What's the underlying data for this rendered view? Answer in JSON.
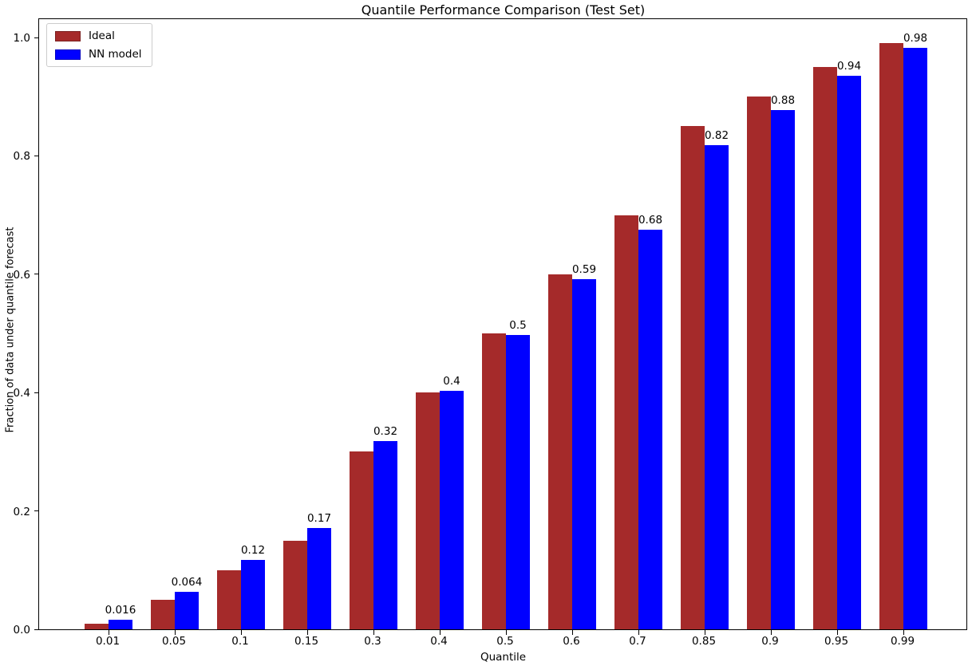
{
  "chart_data": {
    "type": "bar",
    "title": "Quantile Performance Comparison (Test Set)",
    "xlabel": "Quantile",
    "ylabel": "Fraction of data under quantile forecast",
    "categories": [
      "0.01",
      "0.05",
      "0.1",
      "0.15",
      "0.3",
      "0.4",
      "0.5",
      "0.6",
      "0.7",
      "0.85",
      "0.9",
      "0.95",
      "0.99"
    ],
    "series": [
      {
        "name": "Ideal",
        "color": "#A52A2A",
        "values": [
          0.01,
          0.05,
          0.1,
          0.15,
          0.3,
          0.4,
          0.5,
          0.6,
          0.7,
          0.85,
          0.9,
          0.95,
          0.99
        ]
      },
      {
        "name": "NN model",
        "color": "#0000FF",
        "values": [
          0.016,
          0.064,
          0.117,
          0.171,
          0.318,
          0.403,
          0.497,
          0.592,
          0.675,
          0.818,
          0.878,
          0.935,
          0.982
        ]
      }
    ],
    "bar_labels": [
      "0.016",
      "0.064",
      "0.12",
      "0.17",
      "0.32",
      "0.4",
      "0.5",
      "0.59",
      "0.68",
      "0.82",
      "0.88",
      "0.94",
      "0.98"
    ],
    "yticks": [
      "0.0",
      "0.2",
      "0.4",
      "0.6",
      "0.8",
      "1.0"
    ],
    "ylim": [
      0,
      1.034
    ],
    "xlim_note": "category axis",
    "legend_position": "upper left",
    "grid": false,
    "background": "#ffffff",
    "text_color": "#000000"
  }
}
